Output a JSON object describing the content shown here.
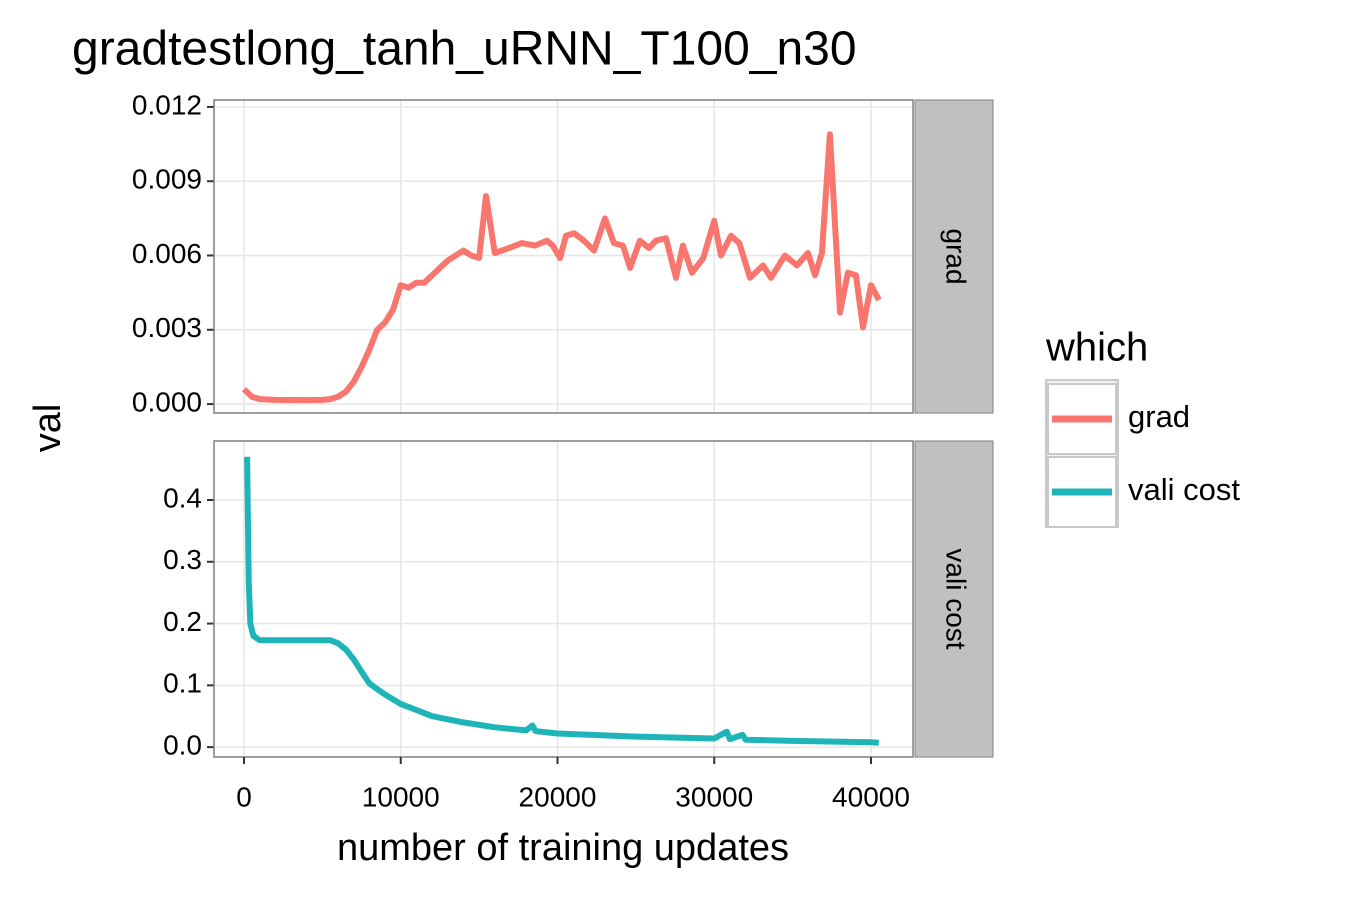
{
  "chart_data": {
    "type": "line",
    "title": "gradtestlong_tanh_uRNN_T100_n30",
    "xlabel": "number of training updates",
    "ylabel": "val",
    "legend_title": "which",
    "legend": "right",
    "grid": true,
    "xlim": [
      -1914,
      42680
    ],
    "xticks": [
      0,
      10000,
      20000,
      30000,
      40000
    ],
    "panels": [
      {
        "strip": "grad",
        "ylim": [
          -0.00036,
          0.01228
        ],
        "yticks": [
          {
            "value": 0,
            "label": "0.000"
          },
          {
            "value": 0.003,
            "label": "0.003"
          },
          {
            "value": 0.006,
            "label": "0.006"
          },
          {
            "value": 0.009,
            "label": "0.009"
          },
          {
            "value": 0.012,
            "label": "0.012"
          }
        ],
        "series": [
          {
            "name": "grad",
            "color": "#f8766d",
            "x": [
              0,
              500,
              1000,
              2000,
              4000,
              5000,
              5500,
              6000,
              6500,
              7000,
              7500,
              8000,
              8500,
              9000,
              9500,
              10000,
              10500,
              11000,
              11500,
              12000,
              12500,
              13000,
              14000,
              14500,
              15000,
              15440,
              16000,
              16900,
              17730,
              18560,
              19330,
              19700,
              20160,
              20540,
              21050,
              21690,
              22330,
              23030,
              23600,
              24180,
              24630,
              25260,
              25840,
              26280,
              26920,
              27560,
              28000,
              28580,
              29300,
              30000,
              30430,
              31070,
              31600,
              32280,
              33110,
              33620,
              34510,
              35280,
              35980,
              36430,
              36870,
              37380,
              38020,
              38530,
              39040,
              39490,
              40000,
              40510
            ],
            "values": [
              0.0006,
              0.0003,
              0.0002,
              0.00017,
              0.00016,
              0.00017,
              0.0002,
              0.0003,
              0.0005,
              0.0009,
              0.0015,
              0.0022,
              0.003,
              0.0033,
              0.0038,
              0.0048,
              0.0047,
              0.0049,
              0.0049,
              0.0052,
              0.0055,
              0.0058,
              0.0062,
              0.006,
              0.0059,
              0.0084,
              0.0061,
              0.0063,
              0.0065,
              0.0064,
              0.0066,
              0.0064,
              0.0059,
              0.0068,
              0.0069,
              0.0066,
              0.0062,
              0.0075,
              0.0065,
              0.0064,
              0.0055,
              0.0066,
              0.0063,
              0.0066,
              0.0067,
              0.0051,
              0.0064,
              0.0053,
              0.0059,
              0.0074,
              0.006,
              0.0068,
              0.0065,
              0.0051,
              0.0056,
              0.0051,
              0.006,
              0.0056,
              0.0061,
              0.0052,
              0.0061,
              0.0109,
              0.0037,
              0.0053,
              0.0052,
              0.0031,
              0.0048,
              0.0042
            ]
          }
        ]
      },
      {
        "strip": "vali cost",
        "ylim": [
          -0.016,
          0.4955
        ],
        "yticks": [
          {
            "value": 0,
            "label": "0.0"
          },
          0.1,
          0.2,
          0.3,
          0.4
        ],
        "series": [
          {
            "name": "vali cost",
            "color": "#1fb5b8",
            "x": [
              200,
              300,
              400,
              600,
              1000,
              3000,
              5500,
              6000,
              6500,
              7000,
              7500,
              8000,
              9000,
              10000,
              11000,
              12000,
              14000,
              16000,
              18000,
              18400,
              18600,
              20000,
              25000,
              30000,
              30800,
              31000,
              31800,
              32000,
              35000,
              40000,
              40500
            ],
            "values": [
              0.47,
              0.27,
              0.2,
              0.18,
              0.173,
              0.173,
              0.173,
              0.168,
              0.158,
              0.142,
              0.122,
              0.103,
              0.085,
              0.07,
              0.06,
              0.05,
              0.04,
              0.032,
              0.027,
              0.035,
              0.026,
              0.022,
              0.017,
              0.014,
              0.025,
              0.013,
              0.02,
              0.012,
              0.01,
              0.008,
              0.007
            ]
          }
        ]
      }
    ]
  }
}
